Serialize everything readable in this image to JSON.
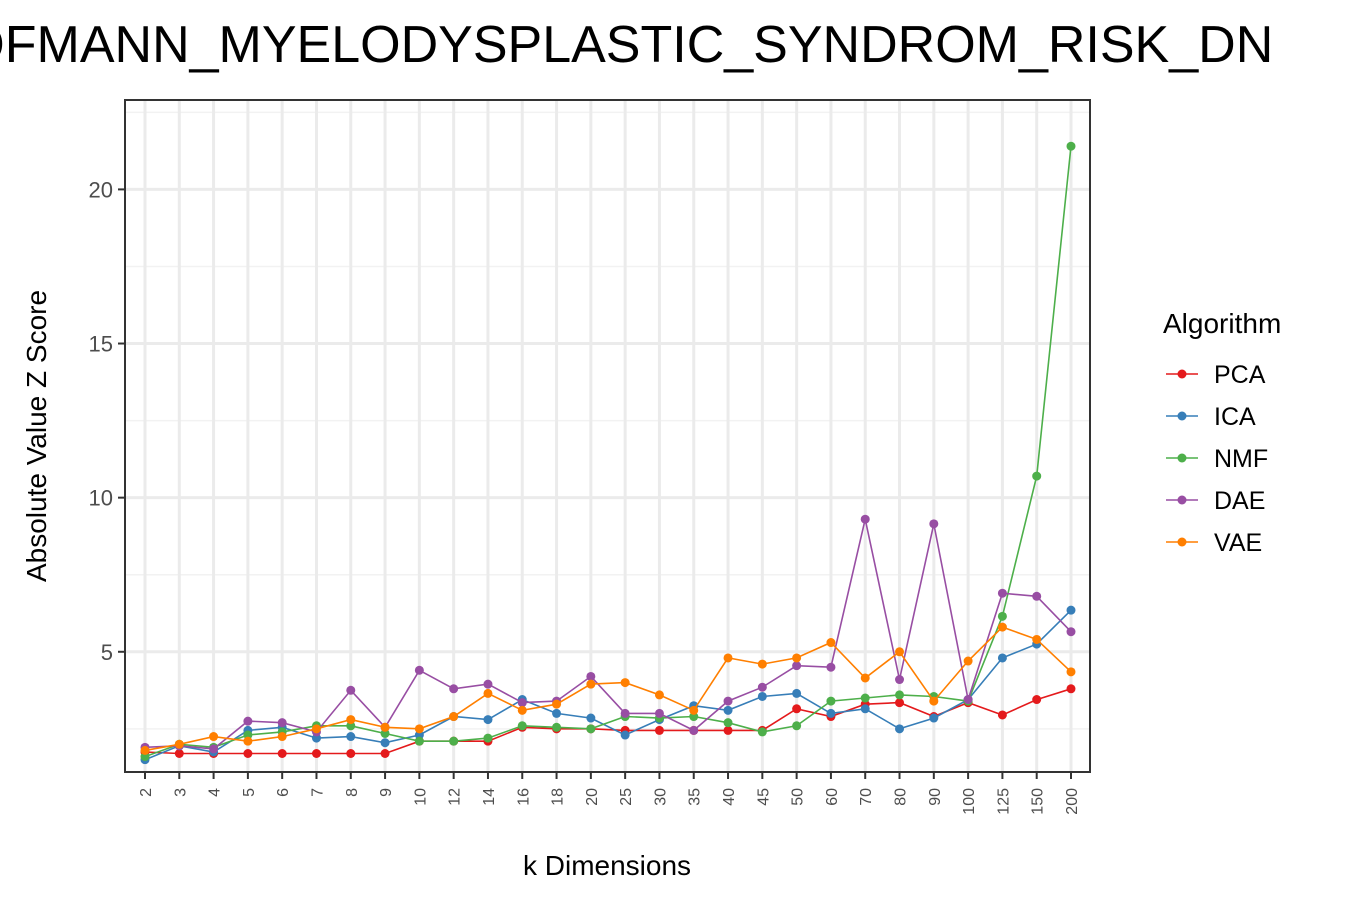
{
  "chart_data": {
    "type": "line",
    "title": "HOFMANN_MYELODYSPLASTIC_SYNDROM_RISK_DN",
    "xlabel": "k Dimensions",
    "ylabel": "Absolute Value Z Score",
    "categories": [
      "2",
      "3",
      "4",
      "5",
      "6",
      "7",
      "8",
      "9",
      "10",
      "12",
      "14",
      "16",
      "18",
      "20",
      "25",
      "30",
      "35",
      "40",
      "45",
      "50",
      "60",
      "70",
      "80",
      "90",
      "100",
      "125",
      "150",
      "200"
    ],
    "yticks": [
      5,
      10,
      15,
      20
    ],
    "ylim": [
      1.1,
      22.9
    ],
    "grid": true,
    "legend": {
      "title": "Algorithm",
      "position": "right"
    },
    "series": [
      {
        "name": "PCA",
        "color": "#E41A1C",
        "values": [
          1.75,
          1.7,
          1.7,
          1.7,
          1.7,
          1.7,
          1.7,
          1.7,
          2.1,
          2.1,
          2.1,
          2.55,
          2.5,
          2.5,
          2.45,
          2.45,
          2.45,
          2.45,
          2.45,
          3.15,
          2.9,
          3.3,
          3.35,
          2.9,
          3.35,
          2.95,
          3.45,
          3.8
        ]
      },
      {
        "name": "ICA",
        "color": "#377EB8",
        "values": [
          1.5,
          1.95,
          1.75,
          2.45,
          2.55,
          2.2,
          2.25,
          2.05,
          2.3,
          2.9,
          2.8,
          3.45,
          3.0,
          2.85,
          2.3,
          2.8,
          3.25,
          3.1,
          3.55,
          3.65,
          3.0,
          3.15,
          2.5,
          2.85,
          3.45,
          4.8,
          5.25,
          6.35
        ]
      },
      {
        "name": "NMF",
        "color": "#4DAF4A",
        "values": [
          1.6,
          2.0,
          1.9,
          2.3,
          2.4,
          2.6,
          2.6,
          2.35,
          2.1,
          2.1,
          2.2,
          2.6,
          2.55,
          2.5,
          2.9,
          2.85,
          2.9,
          2.7,
          2.4,
          2.6,
          3.4,
          3.5,
          3.6,
          3.55,
          3.4,
          6.15,
          10.7,
          21.4
        ]
      },
      {
        "name": "DAE",
        "color": "#984EA3",
        "values": [
          1.9,
          1.95,
          1.85,
          2.75,
          2.7,
          2.4,
          3.75,
          2.55,
          4.4,
          3.8,
          3.95,
          3.35,
          3.4,
          4.2,
          3.0,
          3.0,
          2.45,
          3.4,
          3.85,
          4.55,
          4.5,
          9.3,
          4.1,
          9.15,
          3.45,
          6.9,
          6.8,
          5.65
        ]
      },
      {
        "name": "VAE",
        "color": "#FF7F00",
        "values": [
          1.8,
          2.0,
          2.25,
          2.1,
          2.25,
          2.5,
          2.8,
          2.55,
          2.5,
          2.9,
          3.65,
          3.1,
          3.3,
          3.95,
          4.0,
          3.6,
          3.1,
          4.8,
          4.6,
          4.8,
          5.3,
          4.15,
          5.0,
          3.4,
          4.7,
          5.8,
          5.4,
          4.35
        ]
      }
    ]
  }
}
